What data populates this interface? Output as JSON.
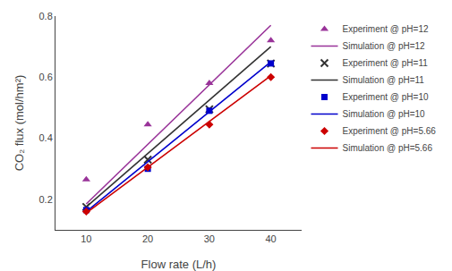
{
  "chart_data": {
    "type": "scatter",
    "xlabel": "Flow rate (L/h)",
    "ylabel": "CO₂ flux (mol/hm²)",
    "xlim": [
      5,
      45
    ],
    "ylim": [
      0.1,
      0.8
    ],
    "xticks": [
      10,
      20,
      30,
      40
    ],
    "yticks": [
      0.2,
      0.4,
      0.6,
      0.8
    ],
    "grid": false,
    "legend": "right",
    "series": [
      {
        "name": "Experiment @ pH=12",
        "type": "scatter",
        "marker": "triangle-up",
        "color": "#993399",
        "x": [
          10,
          20,
          30,
          40
        ],
        "values": [
          0.265,
          0.445,
          0.58,
          0.72
        ]
      },
      {
        "name": "Simulation @ pH=12",
        "type": "line",
        "line_style": "solid",
        "color": "#993399",
        "x": [
          10,
          40
        ],
        "values": [
          0.185,
          0.77
        ]
      },
      {
        "name": "Experiment @ pH=11",
        "type": "scatter",
        "marker": "x",
        "color": "#333333",
        "x": [
          10,
          20,
          30,
          40
        ],
        "values": [
          0.175,
          0.33,
          0.495,
          0.645
        ]
      },
      {
        "name": "Simulation @ pH=11",
        "type": "line",
        "line_style": "solid",
        "color": "#333333",
        "x": [
          10,
          40
        ],
        "values": [
          0.175,
          0.7
        ]
      },
      {
        "name": "Experiment @ pH=10",
        "type": "scatter",
        "marker": "square",
        "color": "#0000cc",
        "x": [
          10,
          20,
          30,
          40
        ],
        "values": [
          0.165,
          0.3,
          0.49,
          0.645
        ]
      },
      {
        "name": "Simulation @ pH=10",
        "type": "line",
        "line_style": "solid",
        "color": "#0000cc",
        "x": [
          10,
          40
        ],
        "values": [
          0.16,
          0.65
        ]
      },
      {
        "name": "Experiment @ pH=5.66",
        "type": "scatter",
        "marker": "diamond",
        "color": "#cc0000",
        "x": [
          10,
          20,
          30,
          40
        ],
        "values": [
          0.16,
          0.305,
          0.445,
          0.6
        ]
      },
      {
        "name": "Simulation @ pH=5.66",
        "type": "line",
        "line_style": "solid",
        "color": "#cc0000",
        "x": [
          10,
          40
        ],
        "values": [
          0.155,
          0.605
        ]
      }
    ]
  }
}
